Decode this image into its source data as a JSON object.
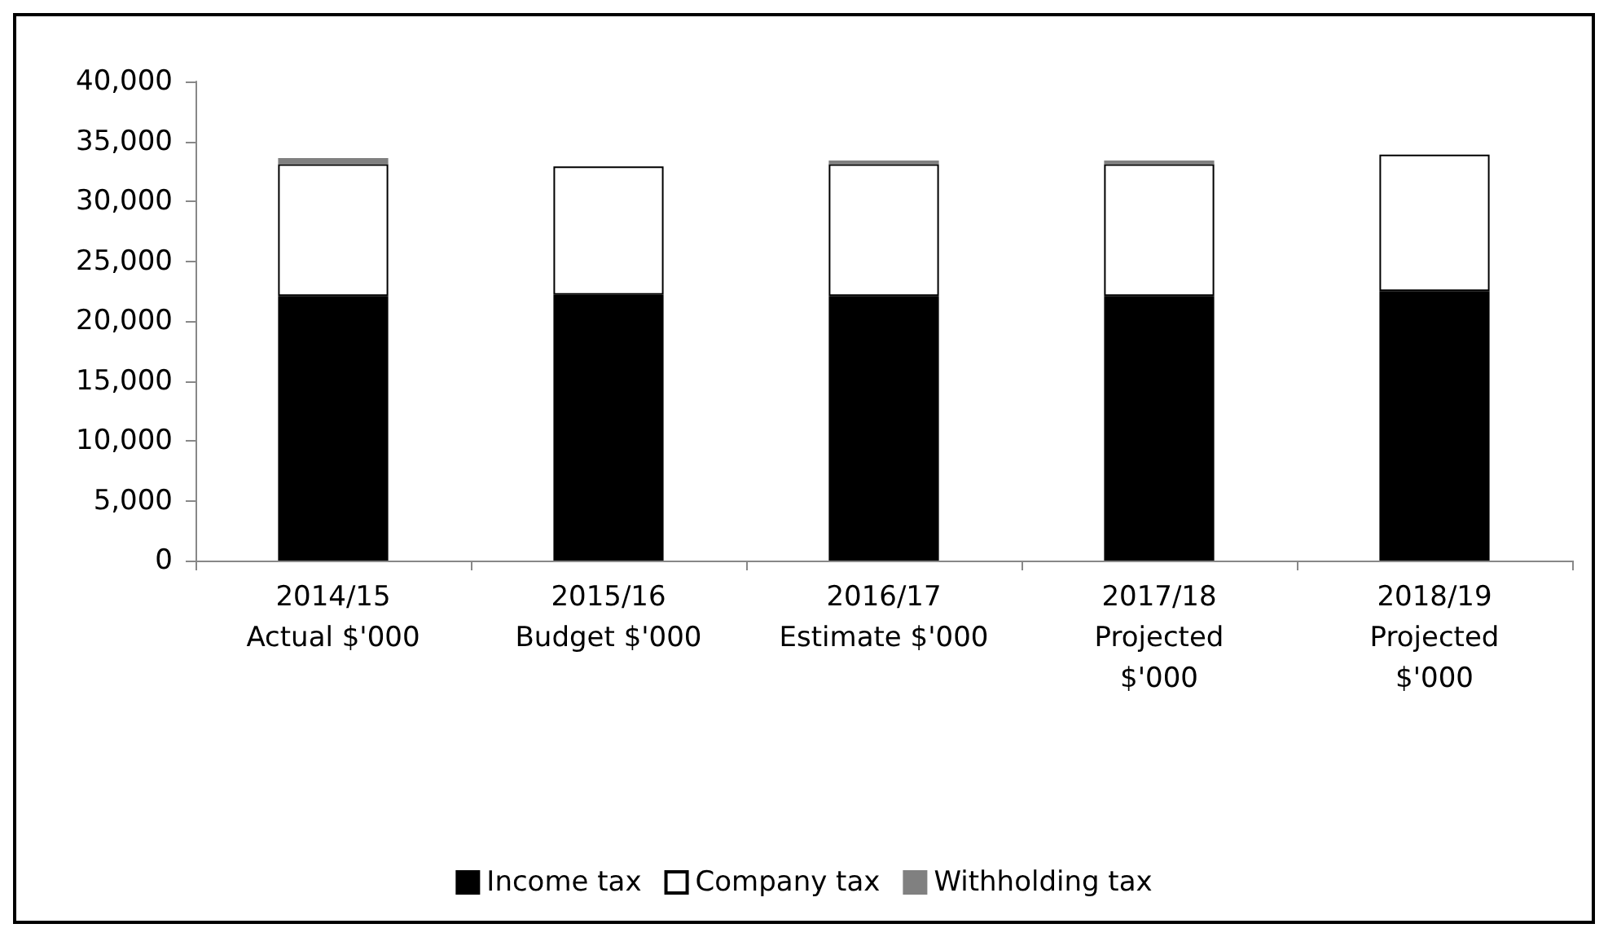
{
  "chart_data": {
    "type": "bar",
    "stacked": true,
    "categories": [
      "2014/15\nActual $'000",
      "2015/16\nBudget $'000",
      "2016/17\nEstimate $'000",
      "2017/18\nProjected\n$'000",
      "2018/19\nProjected\n$'000"
    ],
    "series": [
      {
        "name": "Income tax",
        "color": "#000000",
        "values": [
          22100,
          22200,
          22100,
          22100,
          22500
        ]
      },
      {
        "name": "Company tax",
        "color": "#ffffff",
        "values": [
          11000,
          10700,
          11000,
          11000,
          11400
        ]
      },
      {
        "name": "Withholding tax",
        "color": "#808080",
        "values": [
          500,
          null,
          300,
          300,
          null
        ]
      }
    ],
    "ylim": [
      0,
      40000
    ],
    "yticks": [
      0,
      {
        "value": 5000,
        "label": "5,000"
      },
      {
        "value": 10000,
        "label": "10,000"
      },
      {
        "value": 15000,
        "label": "15,000"
      },
      {
        "value": 20000,
        "label": "20,000"
      },
      {
        "value": 25000,
        "label": "25,000"
      },
      {
        "value": 30000,
        "label": "30,000"
      },
      {
        "value": 35000,
        "label": "35,000"
      },
      {
        "value": 40000,
        "label": "40,000"
      }
    ],
    "grid": false,
    "legend": "bottom"
  }
}
